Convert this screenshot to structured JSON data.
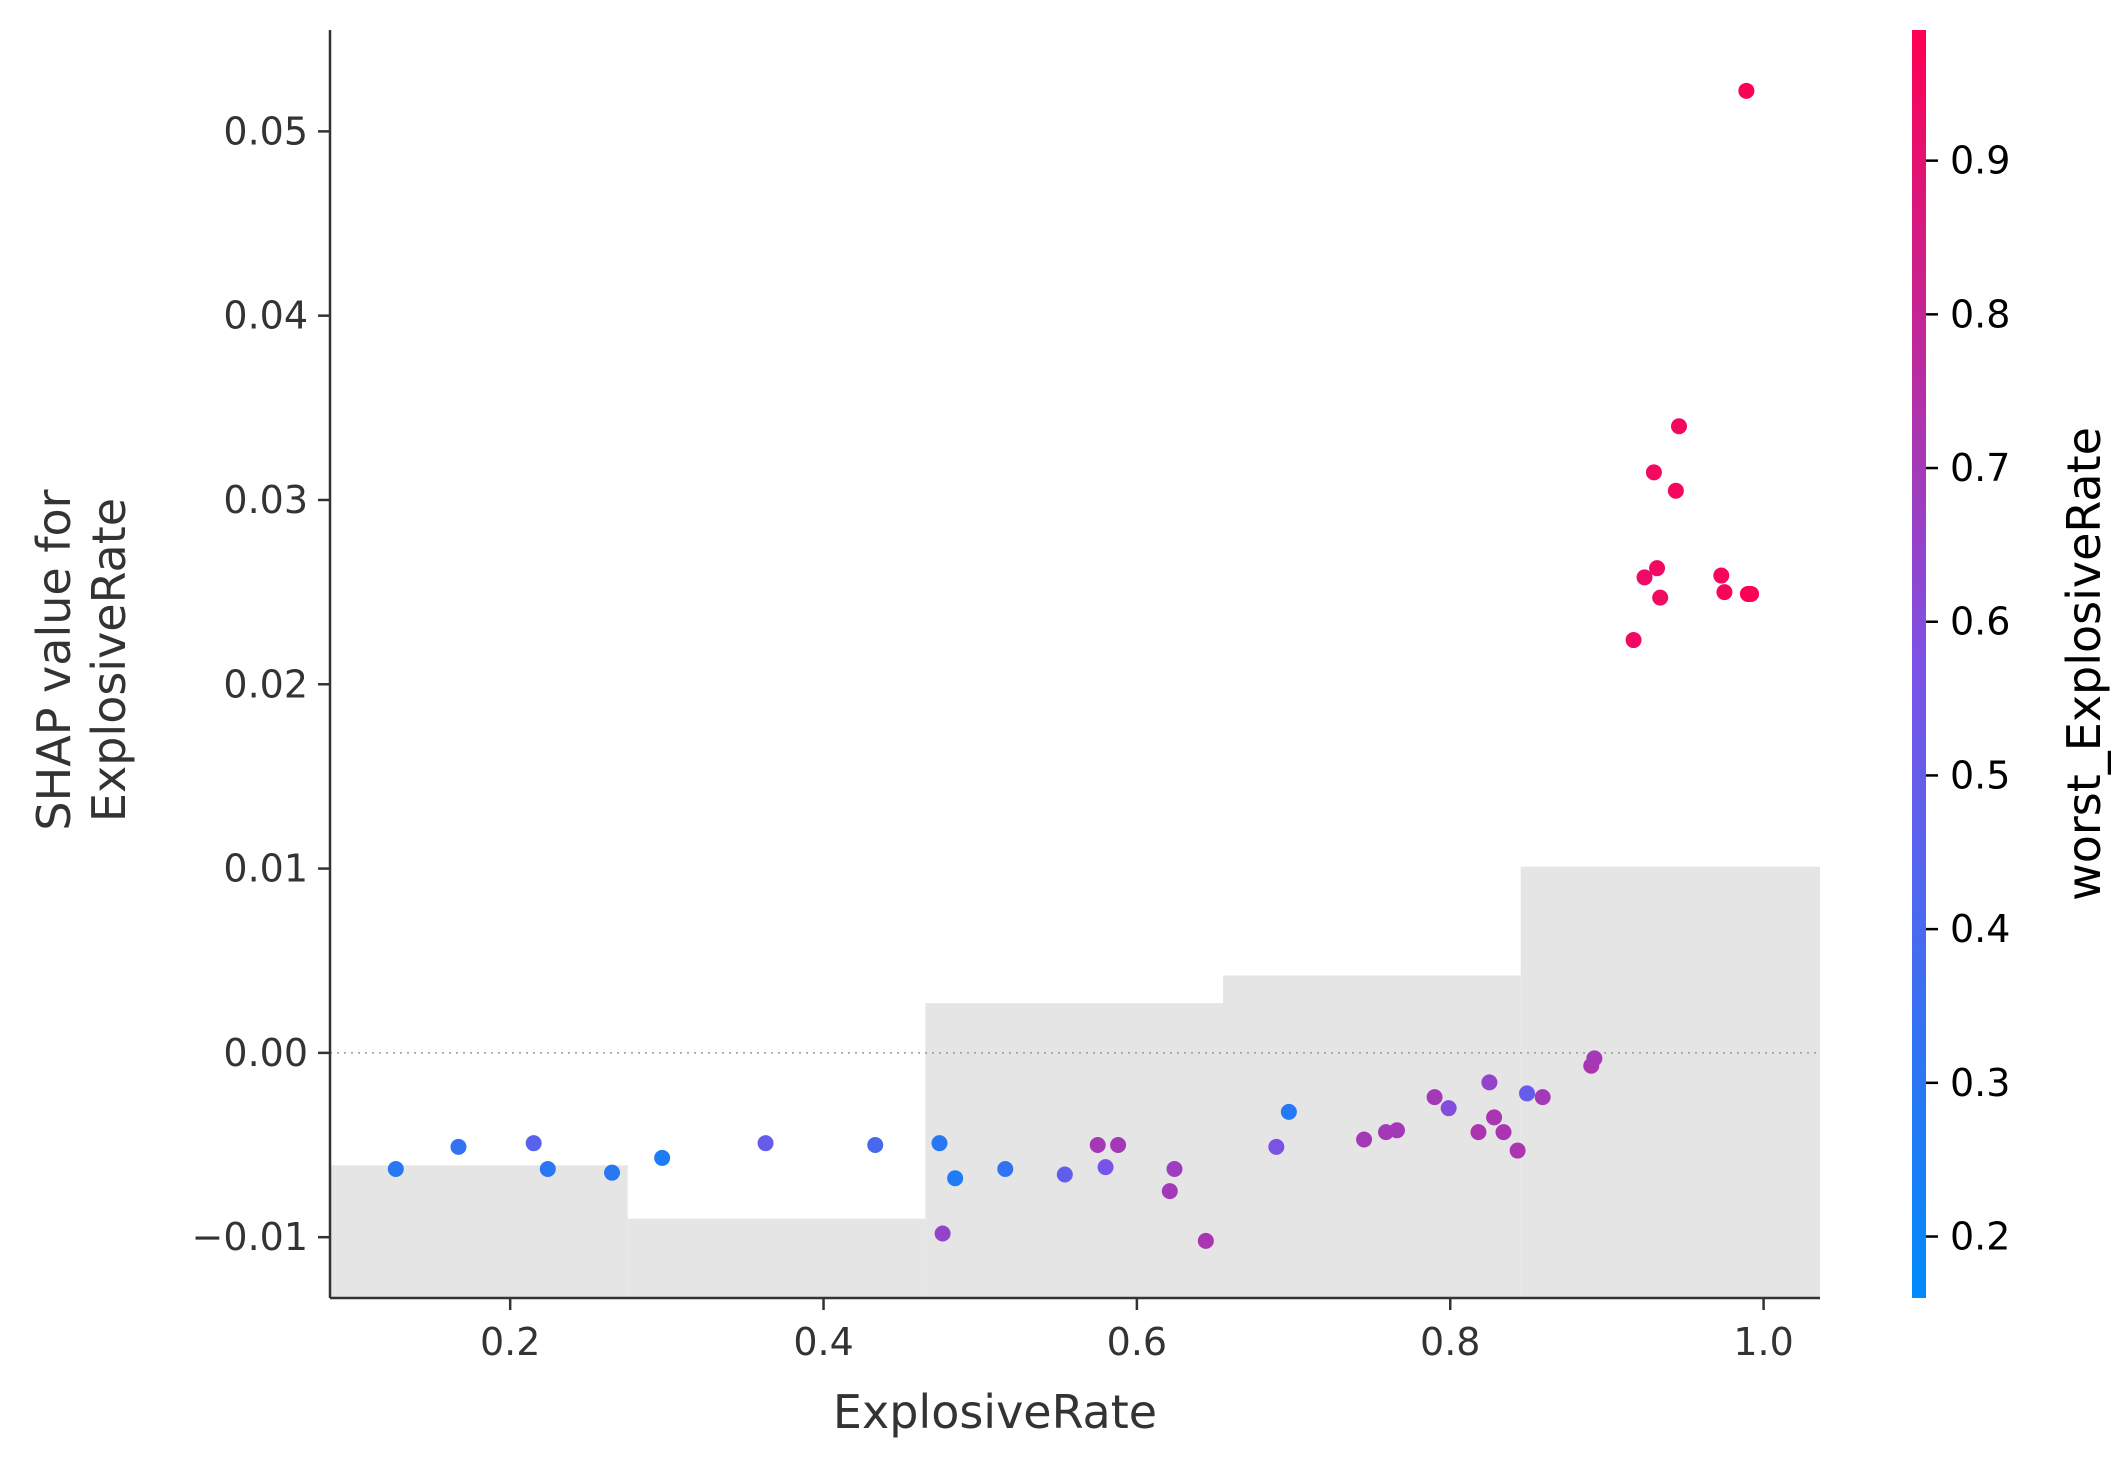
{
  "chart_data": {
    "type": "scatter",
    "title": "",
    "xlabel": "ExplosiveRate",
    "ylabel": [
      "SHAP value for",
      "ExplosiveRate"
    ],
    "xlim": [
      0.085,
      1.036
    ],
    "ylim": [
      -0.0133,
      0.0555
    ],
    "xticks": [
      0.2,
      0.4,
      0.6,
      0.8,
      1.0
    ],
    "xtick_labels": [
      "0.2",
      "0.4",
      "0.6",
      "0.8",
      "1.0"
    ],
    "yticks": [
      -0.01,
      0.0,
      0.01,
      0.02,
      0.03,
      0.04,
      0.05
    ],
    "ytick_labels": [
      "−0.01",
      "0.00",
      "0.01",
      "0.02",
      "0.03",
      "0.04",
      "0.05"
    ],
    "zero_line": 0.0,
    "histogram_bins": [
      {
        "x0": 0.085,
        "x1": 0.275,
        "top": -0.0061
      },
      {
        "x0": 0.275,
        "x1": 0.465,
        "top": -0.009
      },
      {
        "x0": 0.465,
        "x1": 0.655,
        "top": 0.0027
      },
      {
        "x0": 0.655,
        "x1": 0.845,
        "top": 0.0042
      },
      {
        "x0": 0.845,
        "x1": 1.036,
        "top": 0.0101
      }
    ],
    "colorbar": {
      "label": "worst_ExplosiveRate",
      "range": [
        0.16,
        0.985
      ],
      "ticks": [
        0.2,
        0.3,
        0.4,
        0.5,
        0.6,
        0.7,
        0.8,
        0.9
      ],
      "tick_labels": [
        "0.2",
        "0.3",
        "0.4",
        "0.5",
        "0.6",
        "0.7",
        "0.8",
        "0.9"
      ],
      "color_low": "#008afb",
      "color_mid": "#7c52e6",
      "color_high": "#ff0052"
    },
    "points": [
      {
        "x": 0.127,
        "y": -0.0063,
        "c": 0.3
      },
      {
        "x": 0.167,
        "y": -0.0051,
        "c": 0.33
      },
      {
        "x": 0.215,
        "y": -0.0049,
        "c": 0.45
      },
      {
        "x": 0.224,
        "y": -0.0063,
        "c": 0.3
      },
      {
        "x": 0.265,
        "y": -0.0065,
        "c": 0.3
      },
      {
        "x": 0.297,
        "y": -0.0057,
        "c": 0.26
      },
      {
        "x": 0.363,
        "y": -0.0049,
        "c": 0.5
      },
      {
        "x": 0.433,
        "y": -0.005,
        "c": 0.4
      },
      {
        "x": 0.474,
        "y": -0.0049,
        "c": 0.3
      },
      {
        "x": 0.476,
        "y": -0.0098,
        "c": 0.65
      },
      {
        "x": 0.484,
        "y": -0.0068,
        "c": 0.27
      },
      {
        "x": 0.516,
        "y": -0.0063,
        "c": 0.32
      },
      {
        "x": 0.554,
        "y": -0.0066,
        "c": 0.48
      },
      {
        "x": 0.575,
        "y": -0.005,
        "c": 0.7
      },
      {
        "x": 0.58,
        "y": -0.0062,
        "c": 0.55
      },
      {
        "x": 0.588,
        "y": -0.005,
        "c": 0.7
      },
      {
        "x": 0.621,
        "y": -0.0075,
        "c": 0.7
      },
      {
        "x": 0.624,
        "y": -0.0063,
        "c": 0.68
      },
      {
        "x": 0.644,
        "y": -0.0102,
        "c": 0.72
      },
      {
        "x": 0.689,
        "y": -0.0051,
        "c": 0.57
      },
      {
        "x": 0.697,
        "y": -0.0032,
        "c": 0.28
      },
      {
        "x": 0.745,
        "y": -0.0047,
        "c": 0.7
      },
      {
        "x": 0.759,
        "y": -0.0043,
        "c": 0.7
      },
      {
        "x": 0.766,
        "y": -0.0042,
        "c": 0.7
      },
      {
        "x": 0.79,
        "y": -0.0024,
        "c": 0.7
      },
      {
        "x": 0.799,
        "y": -0.003,
        "c": 0.6
      },
      {
        "x": 0.818,
        "y": -0.0043,
        "c": 0.72
      },
      {
        "x": 0.825,
        "y": -0.0016,
        "c": 0.65
      },
      {
        "x": 0.828,
        "y": -0.0035,
        "c": 0.72
      },
      {
        "x": 0.834,
        "y": -0.0043,
        "c": 0.72
      },
      {
        "x": 0.843,
        "y": -0.0053,
        "c": 0.72
      },
      {
        "x": 0.849,
        "y": -0.0022,
        "c": 0.5
      },
      {
        "x": 0.859,
        "y": -0.0024,
        "c": 0.7
      },
      {
        "x": 0.89,
        "y": -0.0007,
        "c": 0.72
      },
      {
        "x": 0.892,
        "y": -0.0003,
        "c": 0.7
      },
      {
        "x": 0.917,
        "y": 0.0224,
        "c": 0.94
      },
      {
        "x": 0.924,
        "y": 0.0258,
        "c": 0.93
      },
      {
        "x": 0.93,
        "y": 0.0315,
        "c": 0.94
      },
      {
        "x": 0.932,
        "y": 0.0263,
        "c": 0.94
      },
      {
        "x": 0.934,
        "y": 0.0247,
        "c": 0.94
      },
      {
        "x": 0.944,
        "y": 0.0305,
        "c": 0.95
      },
      {
        "x": 0.946,
        "y": 0.034,
        "c": 0.95
      },
      {
        "x": 0.973,
        "y": 0.0259,
        "c": 0.96
      },
      {
        "x": 0.975,
        "y": 0.025,
        "c": 0.96
      },
      {
        "x": 0.989,
        "y": 0.0522,
        "c": 0.98
      },
      {
        "x": 0.99,
        "y": 0.0249,
        "c": 0.98
      },
      {
        "x": 0.992,
        "y": 0.0249,
        "c": 0.98
      }
    ]
  }
}
